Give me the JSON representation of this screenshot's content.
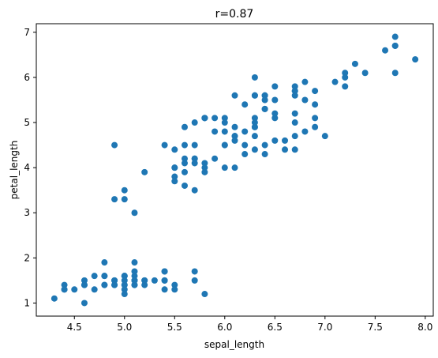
{
  "chart_data": {
    "type": "scatter",
    "title": "r=0.87",
    "xlabel": "sepal_length",
    "ylabel": "petal_length",
    "xlim": [
      4.12,
      8.08
    ],
    "ylim": [
      0.71,
      7.19
    ],
    "xticks": [
      "4.5",
      "5.0",
      "5.5",
      "6.0",
      "6.5",
      "7.0",
      "7.5",
      "8.0"
    ],
    "yticks": [
      "1",
      "2",
      "3",
      "4",
      "5",
      "6",
      "7"
    ],
    "grid": false,
    "marker_color": "#1f77b4",
    "series": [
      {
        "points": [
          [
            5.1,
            1.4
          ],
          [
            4.9,
            1.4
          ],
          [
            4.7,
            1.3
          ],
          [
            4.6,
            1.5
          ],
          [
            5.0,
            1.4
          ],
          [
            5.4,
            1.7
          ],
          [
            4.6,
            1.4
          ],
          [
            5.0,
            1.5
          ],
          [
            4.4,
            1.4
          ],
          [
            4.9,
            1.5
          ],
          [
            5.4,
            1.5
          ],
          [
            4.8,
            1.6
          ],
          [
            4.8,
            1.4
          ],
          [
            4.3,
            1.1
          ],
          [
            5.8,
            1.2
          ],
          [
            5.7,
            1.5
          ],
          [
            5.4,
            1.3
          ],
          [
            5.1,
            1.4
          ],
          [
            5.7,
            1.7
          ],
          [
            5.1,
            1.5
          ],
          [
            5.4,
            1.7
          ],
          [
            5.1,
            1.5
          ],
          [
            4.6,
            1.0
          ],
          [
            5.1,
            1.7
          ],
          [
            4.8,
            1.9
          ],
          [
            5.0,
            1.6
          ],
          [
            5.0,
            1.6
          ],
          [
            5.2,
            1.5
          ],
          [
            5.2,
            1.4
          ],
          [
            4.7,
            1.6
          ],
          [
            4.8,
            1.6
          ],
          [
            5.4,
            1.5
          ],
          [
            5.2,
            1.5
          ],
          [
            5.5,
            1.4
          ],
          [
            4.9,
            1.5
          ],
          [
            5.0,
            1.2
          ],
          [
            5.5,
            1.3
          ],
          [
            4.9,
            1.4
          ],
          [
            4.4,
            1.3
          ],
          [
            5.1,
            1.5
          ],
          [
            5.0,
            1.3
          ],
          [
            4.5,
            1.3
          ],
          [
            4.4,
            1.3
          ],
          [
            5.0,
            1.6
          ],
          [
            5.1,
            1.9
          ],
          [
            4.8,
            1.4
          ],
          [
            5.1,
            1.6
          ],
          [
            4.6,
            1.4
          ],
          [
            5.3,
            1.5
          ],
          [
            5.0,
            1.4
          ],
          [
            7.0,
            4.7
          ],
          [
            6.4,
            4.5
          ],
          [
            6.9,
            4.9
          ],
          [
            5.5,
            4.0
          ],
          [
            6.5,
            4.6
          ],
          [
            5.7,
            4.5
          ],
          [
            6.3,
            4.7
          ],
          [
            4.9,
            3.3
          ],
          [
            6.6,
            4.6
          ],
          [
            5.2,
            3.9
          ],
          [
            5.0,
            3.5
          ],
          [
            5.9,
            4.2
          ],
          [
            6.0,
            4.0
          ],
          [
            6.1,
            4.7
          ],
          [
            5.6,
            3.6
          ],
          [
            6.7,
            4.4
          ],
          [
            5.6,
            4.5
          ],
          [
            5.8,
            4.1
          ],
          [
            6.2,
            4.5
          ],
          [
            5.6,
            3.9
          ],
          [
            5.9,
            4.8
          ],
          [
            6.1,
            4.0
          ],
          [
            6.3,
            4.9
          ],
          [
            6.1,
            4.7
          ],
          [
            6.4,
            4.3
          ],
          [
            6.6,
            4.4
          ],
          [
            6.8,
            4.8
          ],
          [
            6.7,
            5.0
          ],
          [
            6.0,
            4.5
          ],
          [
            5.7,
            3.5
          ],
          [
            5.5,
            3.8
          ],
          [
            5.5,
            3.7
          ],
          [
            5.8,
            3.9
          ],
          [
            6.0,
            5.1
          ],
          [
            5.4,
            4.5
          ],
          [
            6.0,
            4.5
          ],
          [
            6.7,
            4.7
          ],
          [
            6.3,
            4.4
          ],
          [
            5.6,
            4.1
          ],
          [
            5.5,
            4.0
          ],
          [
            5.5,
            4.4
          ],
          [
            6.1,
            4.6
          ],
          [
            5.8,
            4.0
          ],
          [
            5.0,
            3.3
          ],
          [
            5.6,
            4.2
          ],
          [
            5.7,
            4.2
          ],
          [
            5.7,
            4.2
          ],
          [
            6.2,
            4.3
          ],
          [
            5.1,
            3.0
          ],
          [
            5.7,
            4.1
          ],
          [
            6.3,
            6.0
          ],
          [
            5.8,
            5.1
          ],
          [
            7.1,
            5.9
          ],
          [
            6.3,
            5.6
          ],
          [
            6.5,
            5.8
          ],
          [
            7.6,
            6.6
          ],
          [
            4.9,
            4.5
          ],
          [
            7.3,
            6.3
          ],
          [
            6.7,
            5.8
          ],
          [
            7.2,
            6.1
          ],
          [
            6.5,
            5.1
          ],
          [
            6.4,
            5.3
          ],
          [
            6.8,
            5.5
          ],
          [
            5.7,
            5.0
          ],
          [
            5.8,
            5.1
          ],
          [
            6.4,
            5.3
          ],
          [
            6.5,
            5.5
          ],
          [
            7.7,
            6.7
          ],
          [
            7.7,
            6.9
          ],
          [
            6.0,
            5.0
          ],
          [
            6.9,
            5.7
          ],
          [
            5.6,
            4.9
          ],
          [
            7.7,
            6.7
          ],
          [
            6.3,
            4.9
          ],
          [
            6.7,
            5.7
          ],
          [
            7.2,
            6.0
          ],
          [
            6.2,
            4.8
          ],
          [
            6.1,
            4.9
          ],
          [
            6.4,
            5.6
          ],
          [
            7.2,
            5.8
          ],
          [
            7.4,
            6.1
          ],
          [
            7.9,
            6.4
          ],
          [
            6.4,
            5.6
          ],
          [
            6.3,
            5.1
          ],
          [
            6.1,
            5.6
          ],
          [
            7.7,
            6.1
          ],
          [
            6.3,
            5.6
          ],
          [
            6.4,
            5.5
          ],
          [
            6.0,
            4.8
          ],
          [
            6.9,
            5.4
          ],
          [
            6.7,
            5.6
          ],
          [
            6.9,
            5.1
          ],
          [
            5.8,
            5.1
          ],
          [
            6.8,
            5.9
          ],
          [
            6.7,
            5.7
          ],
          [
            6.7,
            5.2
          ],
          [
            6.3,
            5.0
          ],
          [
            6.5,
            5.2
          ],
          [
            6.2,
            5.4
          ],
          [
            5.9,
            5.1
          ]
        ]
      }
    ]
  }
}
